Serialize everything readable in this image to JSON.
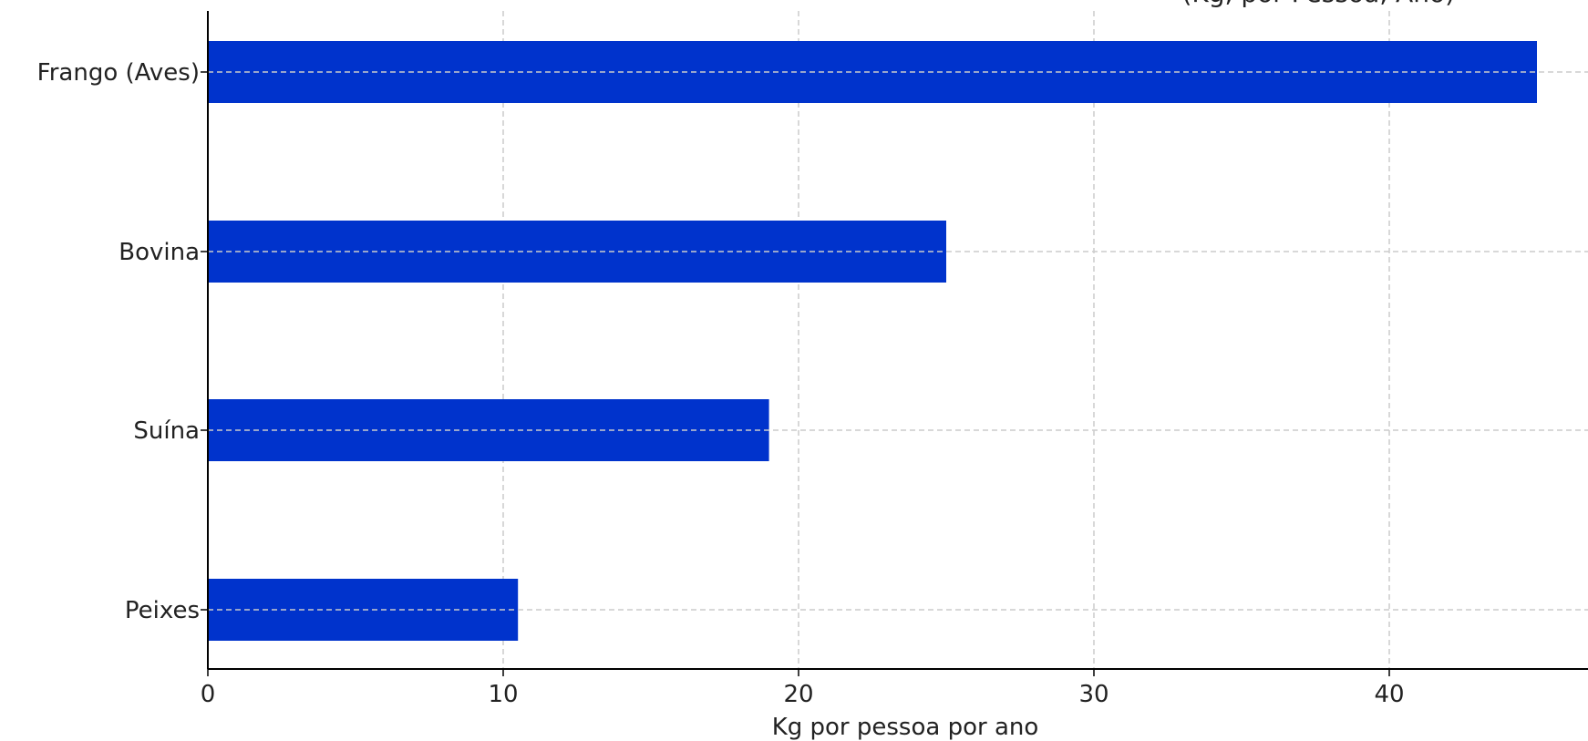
{
  "chart_data": {
    "type": "bar",
    "orientation": "horizontal",
    "title": "",
    "title_visible": "(Kg, por Pessoa, Ano)",
    "categories": [
      "Frango (Aves)",
      "Bovina",
      "Suína",
      "Peixes"
    ],
    "values": [
      45,
      25,
      19,
      10.5
    ],
    "xlabel": "Kg por pessoa por ano",
    "ylabel": "",
    "xlim": [
      0,
      46.7
    ],
    "xticks": [
      0,
      10,
      20,
      30,
      40
    ],
    "xtick_labels": [
      "0",
      "10",
      "20",
      "30",
      "40"
    ],
    "grid": true,
    "bar_color": "#0033CC",
    "grid_color": "#CCCCCC"
  }
}
